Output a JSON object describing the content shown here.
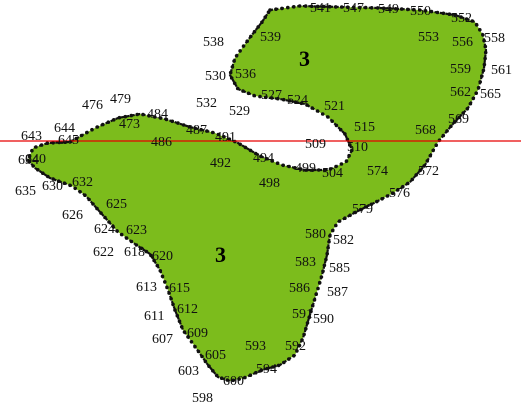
{
  "colors": {
    "fill": "#7cbc1c",
    "outline": "#111111",
    "guide_line": "#e60000",
    "label": "#111111"
  },
  "region_labels": [
    "3",
    "3"
  ],
  "point_labels": [
    "541",
    "547",
    "549",
    "550",
    "552",
    "553",
    "556",
    "558",
    "559",
    "561",
    "562",
    "565",
    "568",
    "569",
    "572",
    "574",
    "576",
    "579",
    "580",
    "582",
    "583",
    "585",
    "586",
    "587",
    "590",
    "591",
    "592",
    "593",
    "594",
    "600",
    "598",
    "603",
    "605",
    "607",
    "609",
    "611",
    "612",
    "613",
    "615",
    "620",
    "618",
    "622",
    "623",
    "624",
    "625",
    "626",
    "632",
    "630",
    "635",
    "634",
    "640",
    "643",
    "644",
    "645",
    "476",
    "479",
    "484",
    "473",
    "487",
    "486",
    "491",
    "492",
    "494",
    "498",
    "499",
    "504",
    "509",
    "510",
    "515",
    "521",
    "524",
    "527",
    "529",
    "532",
    "530",
    "536",
    "538",
    "539"
  ]
}
